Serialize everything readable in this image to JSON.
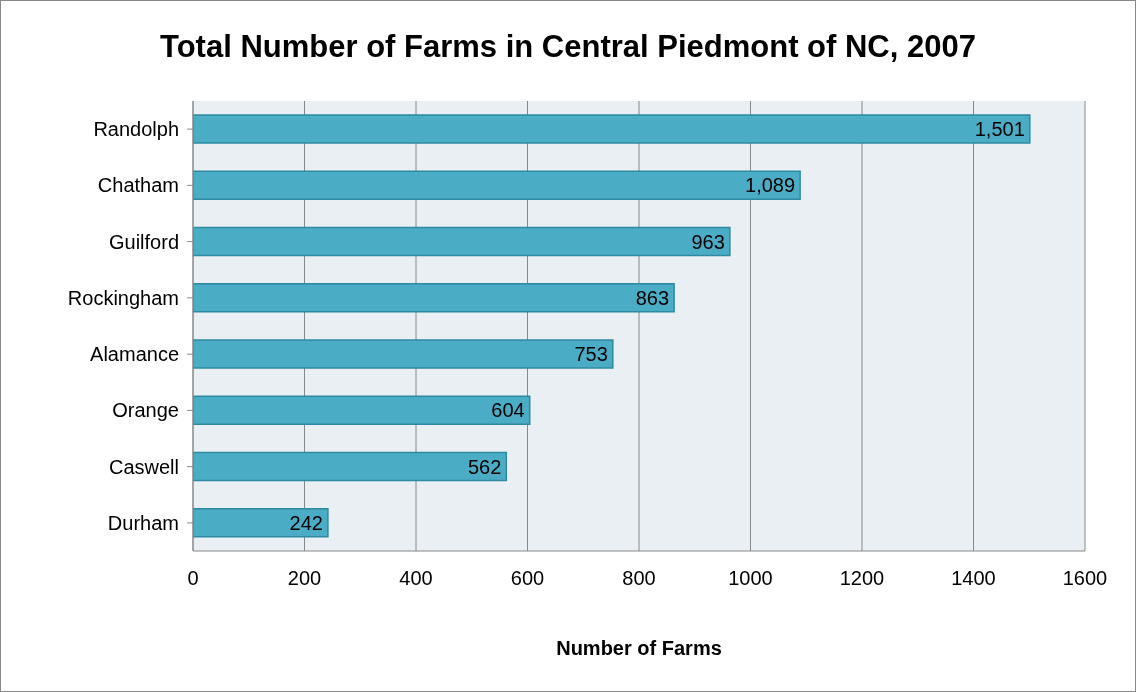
{
  "chart_data": {
    "type": "bar",
    "orientation": "horizontal",
    "title": "Total Number of Farms in Central Piedmont of NC, 2007",
    "xlabel": "Number of Farms",
    "categories": [
      "Randolph",
      "Chatham",
      "Guilford",
      "Rockingham",
      "Alamance",
      "Orange",
      "Caswell",
      "Durham"
    ],
    "values": [
      1501,
      1089,
      963,
      863,
      753,
      604,
      562,
      242
    ],
    "value_labels": [
      "1,501",
      "1,089",
      "963",
      "863",
      "753",
      "604",
      "562",
      "242"
    ],
    "color": "#4bacc6",
    "xlim": [
      0,
      1600
    ],
    "xticks": [
      0,
      200,
      400,
      600,
      800,
      1000,
      1200,
      1400,
      1600
    ],
    "grid": "x",
    "legend": false
  }
}
